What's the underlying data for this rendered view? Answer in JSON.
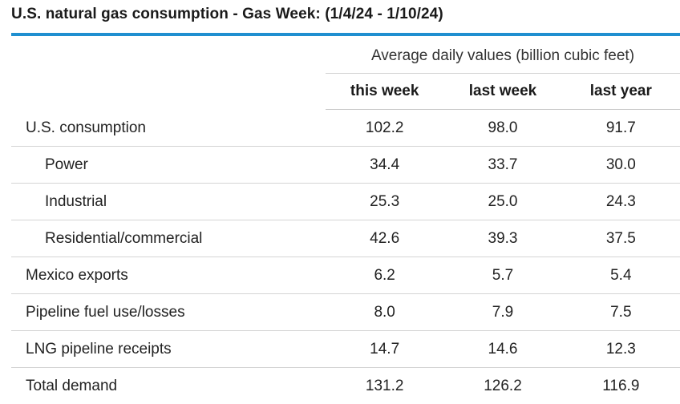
{
  "title": "U.S. natural gas consumption - Gas Week: (1/4/24 - 1/10/24)",
  "header": {
    "group_label": "Average daily values (billion cubic feet)",
    "columns": [
      "this week",
      "last week",
      "last year"
    ]
  },
  "rows": [
    {
      "label": "U.S. consumption",
      "indent": false,
      "values": [
        "102.2",
        "98.0",
        "91.7"
      ]
    },
    {
      "label": "Power",
      "indent": true,
      "values": [
        "34.4",
        "33.7",
        "30.0"
      ]
    },
    {
      "label": "Industrial",
      "indent": true,
      "values": [
        "25.3",
        "25.0",
        "24.3"
      ]
    },
    {
      "label": "Residential/commercial",
      "indent": true,
      "values": [
        "42.6",
        "39.3",
        "37.5"
      ]
    },
    {
      "label": "Mexico exports",
      "indent": false,
      "values": [
        "6.2",
        "5.7",
        "5.4"
      ]
    },
    {
      "label": "Pipeline fuel use/losses",
      "indent": false,
      "values": [
        "8.0",
        "7.9",
        "7.5"
      ]
    },
    {
      "label": "LNG pipeline receipts",
      "indent": false,
      "values": [
        "14.7",
        "14.6",
        "12.3"
      ]
    },
    {
      "label": "Total demand",
      "indent": false,
      "values": [
        "131.2",
        "126.2",
        "116.9"
      ]
    }
  ],
  "colors": {
    "accent": "#1f8fd0"
  }
}
